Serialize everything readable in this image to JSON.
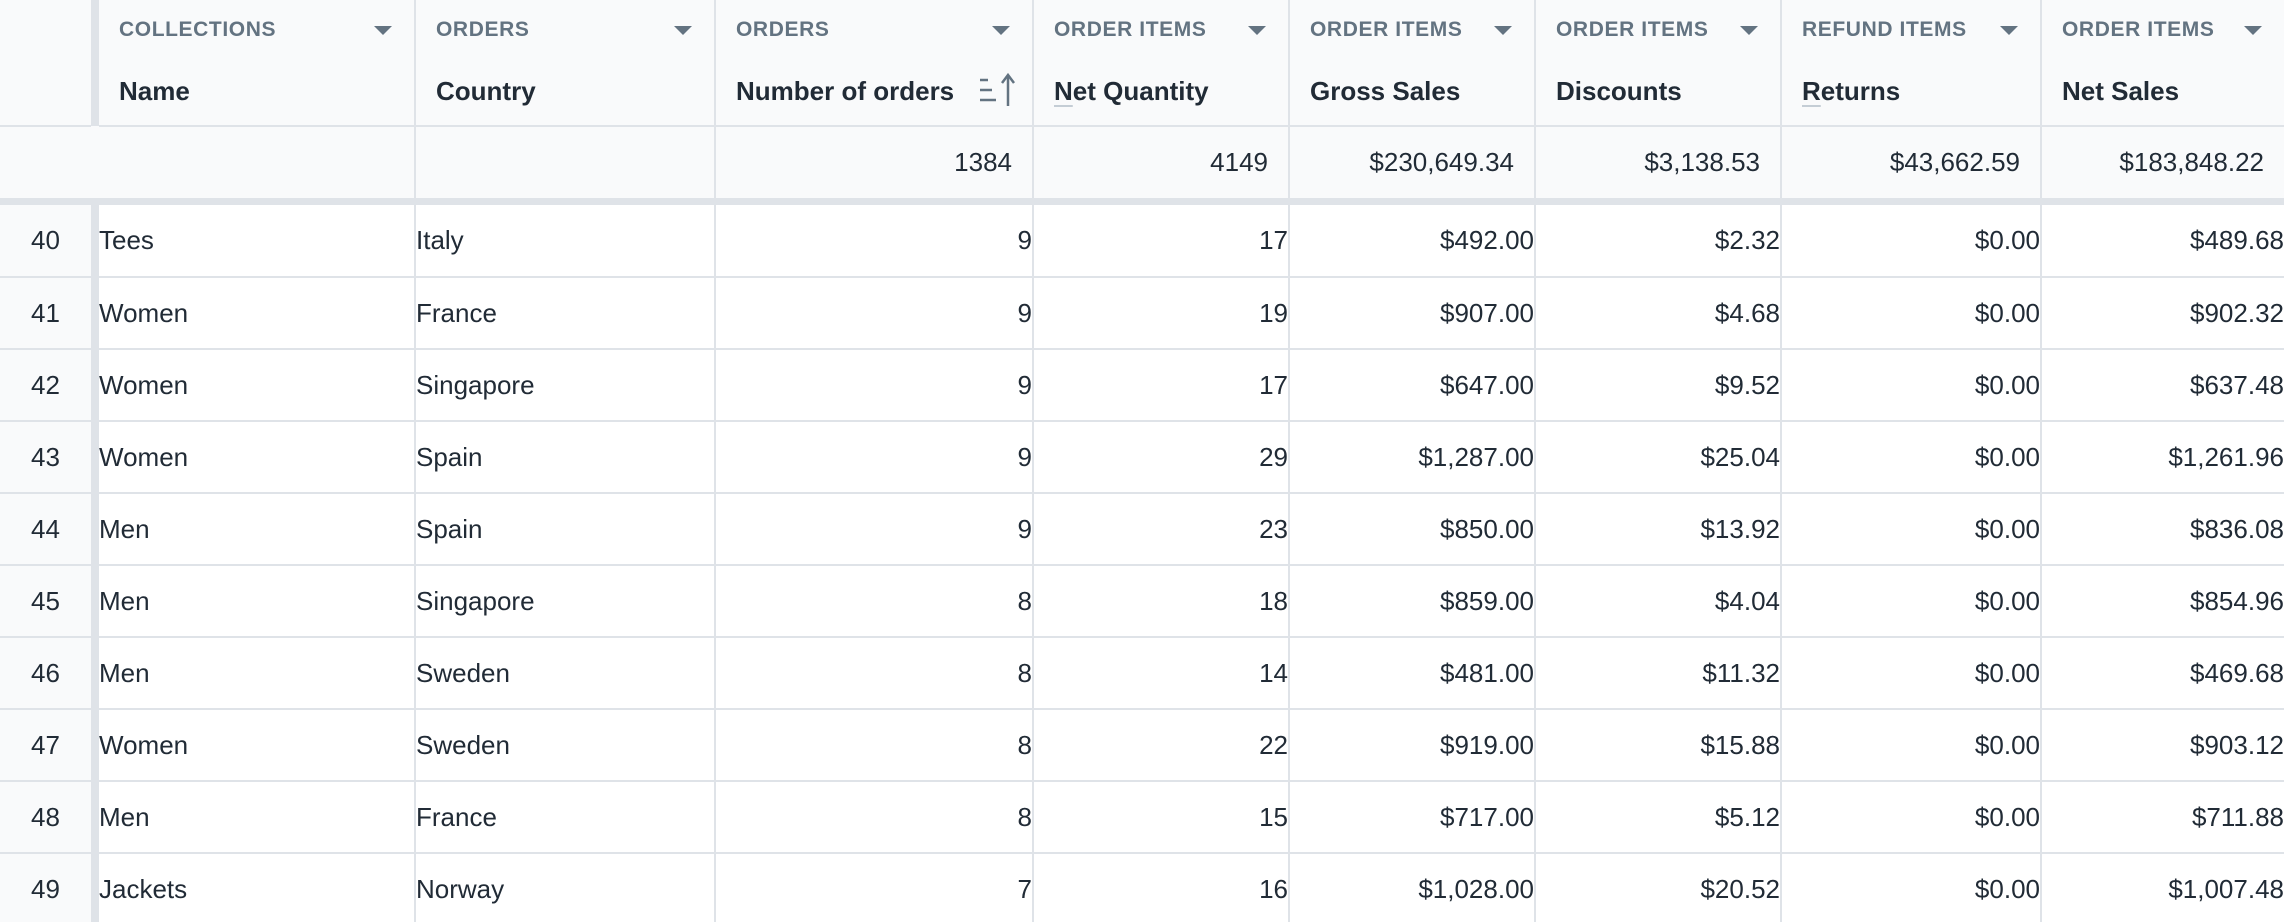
{
  "columns": [
    {
      "source": "COLLECTIONS",
      "title": "Name"
    },
    {
      "source": "ORDERS",
      "title": "Country"
    },
    {
      "source": "ORDERS",
      "title": "Number of orders"
    },
    {
      "source": "ORDER ITEMS",
      "title_first": "N",
      "title_rest": "et Quantity"
    },
    {
      "source": "ORDER ITEMS",
      "title": "Gross Sales"
    },
    {
      "source": "ORDER ITEMS",
      "title": "Discounts"
    },
    {
      "source": "REFUND ITEMS",
      "title_first": "R",
      "title_rest": "eturns"
    },
    {
      "source": "ORDER ITEMS",
      "title": "Net Sales"
    }
  ],
  "totals": {
    "orders": "1384",
    "net_quantity": "4149",
    "gross_sales": "$230,649.34",
    "discounts": "$3,138.53",
    "returns": "$43,662.59",
    "net_sales": "$183,848.22"
  },
  "rows": [
    {
      "index": "40",
      "name": "Tees",
      "country": "Italy",
      "orders": "9",
      "qty": "17",
      "gross": "$492.00",
      "disc": "$2.32",
      "ret": "$0.00",
      "net": "$489.68"
    },
    {
      "index": "41",
      "name": "Women",
      "country": "France",
      "orders": "9",
      "qty": "19",
      "gross": "$907.00",
      "disc": "$4.68",
      "ret": "$0.00",
      "net": "$902.32"
    },
    {
      "index": "42",
      "name": "Women",
      "country": "Singapore",
      "orders": "9",
      "qty": "17",
      "gross": "$647.00",
      "disc": "$9.52",
      "ret": "$0.00",
      "net": "$637.48"
    },
    {
      "index": "43",
      "name": "Women",
      "country": "Spain",
      "orders": "9",
      "qty": "29",
      "gross": "$1,287.00",
      "disc": "$25.04",
      "ret": "$0.00",
      "net": "$1,261.96"
    },
    {
      "index": "44",
      "name": "Men",
      "country": "Spain",
      "orders": "9",
      "qty": "23",
      "gross": "$850.00",
      "disc": "$13.92",
      "ret": "$0.00",
      "net": "$836.08"
    },
    {
      "index": "45",
      "name": "Men",
      "country": "Singapore",
      "orders": "8",
      "qty": "18",
      "gross": "$859.00",
      "disc": "$4.04",
      "ret": "$0.00",
      "net": "$854.96"
    },
    {
      "index": "46",
      "name": "Men",
      "country": "Sweden",
      "orders": "8",
      "qty": "14",
      "gross": "$481.00",
      "disc": "$11.32",
      "ret": "$0.00",
      "net": "$469.68"
    },
    {
      "index": "47",
      "name": "Women",
      "country": "Sweden",
      "orders": "8",
      "qty": "22",
      "gross": "$919.00",
      "disc": "$15.88",
      "ret": "$0.00",
      "net": "$903.12"
    },
    {
      "index": "48",
      "name": "Men",
      "country": "France",
      "orders": "8",
      "qty": "15",
      "gross": "$717.00",
      "disc": "$5.12",
      "ret": "$0.00",
      "net": "$711.88"
    },
    {
      "index": "49",
      "name": "Jackets",
      "country": "Norway",
      "orders": "7",
      "qty": "16",
      "gross": "$1,028.00",
      "disc": "$20.52",
      "ret": "$0.00",
      "net": "$1,007.48"
    }
  ],
  "icons": {
    "column_menu": "chevron-down-icon",
    "sort": "sort-ascending-icon"
  },
  "colors": {
    "header_bg": "#f9fafb",
    "border": "#dfe3e8",
    "muted_text": "#637381",
    "text": "#212b36"
  }
}
